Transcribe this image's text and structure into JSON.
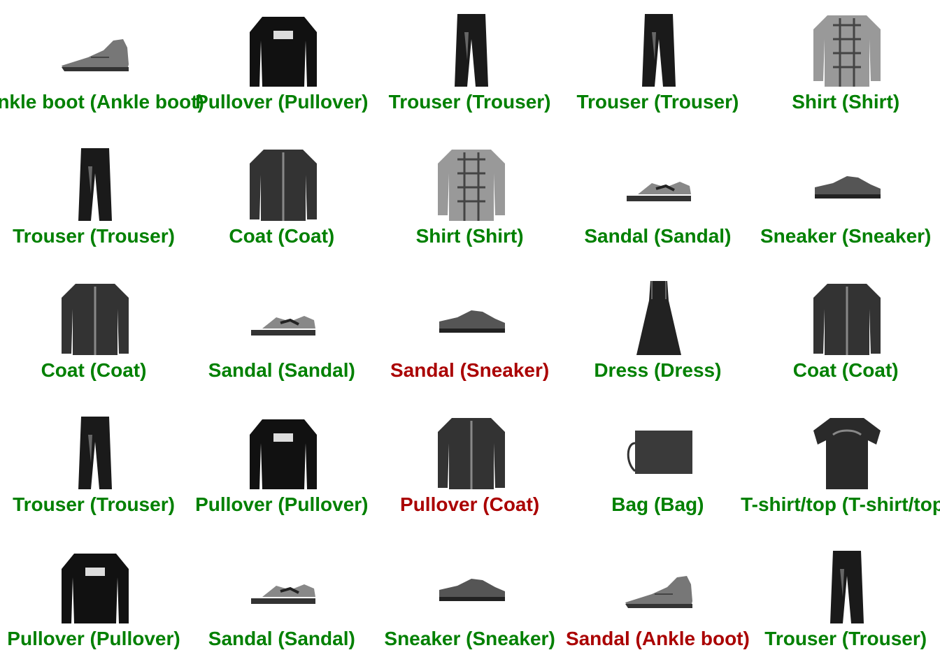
{
  "colors": {
    "correct": "#008000",
    "wrong": "#aa0000"
  },
  "grid": {
    "items": [
      {
        "predicted": "Ankle boot",
        "actual": "Ankle boot",
        "caption": "Ankle boot (Ankle boot)",
        "correct": true,
        "icon": "ankle-boot-icon"
      },
      {
        "predicted": "Pullover",
        "actual": "Pullover",
        "caption": "Pullover (Pullover)",
        "correct": true,
        "icon": "pullover-icon"
      },
      {
        "predicted": "Trouser",
        "actual": "Trouser",
        "caption": "Trouser (Trouser)",
        "correct": true,
        "icon": "trouser-icon"
      },
      {
        "predicted": "Trouser",
        "actual": "Trouser",
        "caption": "Trouser (Trouser)",
        "correct": true,
        "icon": "trouser-icon"
      },
      {
        "predicted": "Shirt",
        "actual": "Shirt",
        "caption": "Shirt (Shirt)",
        "correct": true,
        "icon": "shirt-icon"
      },
      {
        "predicted": "Trouser",
        "actual": "Trouser",
        "caption": "Trouser (Trouser)",
        "correct": true,
        "icon": "trouser-icon"
      },
      {
        "predicted": "Coat",
        "actual": "Coat",
        "caption": "Coat (Coat)",
        "correct": true,
        "icon": "coat-icon"
      },
      {
        "predicted": "Shirt",
        "actual": "Shirt",
        "caption": "Shirt (Shirt)",
        "correct": true,
        "icon": "shirt-icon"
      },
      {
        "predicted": "Sandal",
        "actual": "Sandal",
        "caption": "Sandal (Sandal)",
        "correct": true,
        "icon": "sandal-icon"
      },
      {
        "predicted": "Sneaker",
        "actual": "Sneaker",
        "caption": "Sneaker (Sneaker)",
        "correct": true,
        "icon": "sneaker-icon"
      },
      {
        "predicted": "Coat",
        "actual": "Coat",
        "caption": "Coat (Coat)",
        "correct": true,
        "icon": "coat-icon"
      },
      {
        "predicted": "Sandal",
        "actual": "Sandal",
        "caption": "Sandal (Sandal)",
        "correct": true,
        "icon": "sandal-icon"
      },
      {
        "predicted": "Sandal",
        "actual": "Sneaker",
        "caption": "Sandal (Sneaker)",
        "correct": false,
        "icon": "sneaker-icon"
      },
      {
        "predicted": "Dress",
        "actual": "Dress",
        "caption": "Dress (Dress)",
        "correct": true,
        "icon": "dress-icon"
      },
      {
        "predicted": "Coat",
        "actual": "Coat",
        "caption": "Coat (Coat)",
        "correct": true,
        "icon": "coat-icon"
      },
      {
        "predicted": "Trouser",
        "actual": "Trouser",
        "caption": "Trouser (Trouser)",
        "correct": true,
        "icon": "trouser-icon"
      },
      {
        "predicted": "Pullover",
        "actual": "Pullover",
        "caption": "Pullover (Pullover)",
        "correct": true,
        "icon": "pullover-icon"
      },
      {
        "predicted": "Pullover",
        "actual": "Coat",
        "caption": "Pullover (Coat)",
        "correct": false,
        "icon": "coat-icon"
      },
      {
        "predicted": "Bag",
        "actual": "Bag",
        "caption": "Bag (Bag)",
        "correct": true,
        "icon": "bag-icon"
      },
      {
        "predicted": "T-shirt/top",
        "actual": "T-shirt/top",
        "caption": "T-shirt/top (T-shirt/top)",
        "correct": true,
        "icon": "tshirt-icon"
      },
      {
        "predicted": "Pullover",
        "actual": "Pullover",
        "caption": "Pullover (Pullover)",
        "correct": true,
        "icon": "pullover-icon"
      },
      {
        "predicted": "Sandal",
        "actual": "Sandal",
        "caption": "Sandal (Sandal)",
        "correct": true,
        "icon": "sandal-icon"
      },
      {
        "predicted": "Sneaker",
        "actual": "Sneaker",
        "caption": "Sneaker (Sneaker)",
        "correct": true,
        "icon": "sneaker-icon"
      },
      {
        "predicted": "Sandal",
        "actual": "Ankle boot",
        "caption": "Sandal (Ankle boot)",
        "correct": false,
        "icon": "ankle-boot-icon"
      },
      {
        "predicted": "Trouser",
        "actual": "Trouser",
        "caption": "Trouser (Trouser)",
        "correct": true,
        "icon": "trouser-icon"
      }
    ]
  }
}
